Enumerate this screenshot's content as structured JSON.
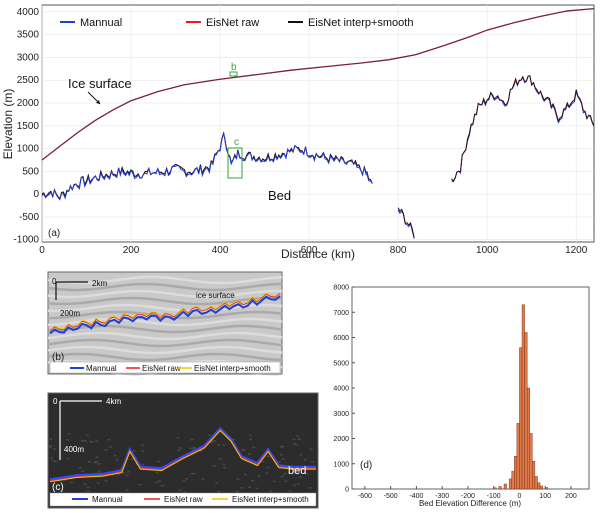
{
  "chart_data": [
    {
      "panel": "a",
      "type": "line",
      "xlabel": "Distance (km)",
      "ylabel": "Elevation (m)",
      "xlim": [
        0,
        1240
      ],
      "ylim": [
        -1050,
        4150
      ],
      "xticks": [
        "0",
        "200",
        "400",
        "600",
        "800",
        "1000",
        "1200"
      ],
      "yticks": [
        "-1000",
        "-500",
        "0",
        "500",
        "1000",
        "1500",
        "2000",
        "2500",
        "3000",
        "3500",
        "4000"
      ],
      "legend": [
        "Mannual",
        "EisNet raw",
        "EisNet interp+smooth"
      ],
      "legend_position": "top-left",
      "colors": {
        "manual": "#1f3fd6",
        "raw": "#e02020",
        "smooth": "#111111",
        "surface": "#7a1f3a",
        "box": "#2eaa3a"
      },
      "annotations": {
        "ice_surface": "Ice surface",
        "bed": "Bed",
        "b": "b",
        "c": "c",
        "panel": "(a)"
      },
      "surface_points": [
        [
          0,
          750
        ],
        [
          40,
          1050
        ],
        [
          80,
          1350
        ],
        [
          120,
          1620
        ],
        [
          160,
          1850
        ],
        [
          200,
          2050
        ],
        [
          260,
          2250
        ],
        [
          320,
          2400
        ],
        [
          400,
          2520
        ],
        [
          480,
          2620
        ],
        [
          560,
          2720
        ],
        [
          640,
          2800
        ],
        [
          720,
          2880
        ],
        [
          780,
          2950
        ],
        [
          840,
          3060
        ],
        [
          900,
          3250
        ],
        [
          960,
          3450
        ],
        [
          1000,
          3600
        ],
        [
          1060,
          3760
        ],
        [
          1120,
          3900
        ],
        [
          1180,
          4020
        ],
        [
          1240,
          4070
        ]
      ],
      "bed_points": [
        [
          0,
          0
        ],
        [
          20,
          60
        ],
        [
          40,
          -60
        ],
        [
          60,
          120
        ],
        [
          80,
          250
        ],
        [
          100,
          300
        ],
        [
          140,
          420
        ],
        [
          180,
          500
        ],
        [
          220,
          450
        ],
        [
          260,
          480
        ],
        [
          300,
          550
        ],
        [
          340,
          500
        ],
        [
          380,
          620
        ],
        [
          400,
          1050
        ],
        [
          410,
          1300
        ],
        [
          425,
          650
        ],
        [
          440,
          900
        ],
        [
          460,
          850
        ],
        [
          500,
          800
        ],
        [
          540,
          900
        ],
        [
          580,
          1000
        ],
        [
          620,
          850
        ],
        [
          660,
          750
        ],
        [
          700,
          650
        ],
        [
          730,
          450
        ],
        [
          745,
          100
        ],
        [
          760,
          null
        ],
        [
          790,
          null
        ],
        [
          800,
          -300
        ],
        [
          820,
          -600
        ],
        [
          840,
          -950
        ],
        [
          860,
          null
        ],
        [
          900,
          null
        ],
        [
          920,
          300
        ],
        [
          940,
          600
        ],
        [
          960,
          1400
        ],
        [
          980,
          1900
        ],
        [
          1000,
          2100
        ],
        [
          1020,
          2200
        ],
        [
          1040,
          2000
        ],
        [
          1060,
          2400
        ],
        [
          1080,
          2600
        ],
        [
          1100,
          2500
        ],
        [
          1120,
          2200
        ],
        [
          1140,
          2000
        ],
        [
          1160,
          1700
        ],
        [
          1180,
          1900
        ],
        [
          1200,
          2200
        ],
        [
          1220,
          1800
        ],
        [
          1240,
          1500
        ]
      ]
    },
    {
      "panel": "b",
      "type": "line",
      "legend": [
        "Mannual",
        "EisNet raw",
        "EisNet interp+smooth"
      ],
      "scale_labels": {
        "zero": "0",
        "x": "2km",
        "y": "200m"
      },
      "annotations": {
        "surface": "ice surface",
        "panel": "(b)"
      },
      "trace_points": [
        [
          0,
          0.38
        ],
        [
          0.1,
          0.46
        ],
        [
          0.2,
          0.5
        ],
        [
          0.3,
          0.55
        ],
        [
          0.4,
          0.62
        ],
        [
          0.5,
          0.58
        ],
        [
          0.6,
          0.66
        ],
        [
          0.7,
          0.7
        ],
        [
          0.8,
          0.74
        ],
        [
          0.9,
          0.82
        ],
        [
          1.0,
          0.9
        ]
      ]
    },
    {
      "panel": "c",
      "type": "line",
      "legend": [
        "Mannual",
        "EisNet raw",
        "EisNet interp+smooth"
      ],
      "scale_labels": {
        "zero": "0",
        "x": "4km",
        "y": "400m"
      },
      "annotations": {
        "bed": "bed",
        "panel": "(c)"
      },
      "trace_points": [
        [
          0,
          0.12
        ],
        [
          0.1,
          0.18
        ],
        [
          0.2,
          0.2
        ],
        [
          0.27,
          0.25
        ],
        [
          0.3,
          0.55
        ],
        [
          0.34,
          0.3
        ],
        [
          0.42,
          0.28
        ],
        [
          0.5,
          0.45
        ],
        [
          0.58,
          0.6
        ],
        [
          0.64,
          0.85
        ],
        [
          0.68,
          0.7
        ],
        [
          0.72,
          0.45
        ],
        [
          0.78,
          0.35
        ],
        [
          0.82,
          0.55
        ],
        [
          0.86,
          0.32
        ],
        [
          0.92,
          0.3
        ],
        [
          1.0,
          0.3
        ]
      ]
    },
    {
      "panel": "d",
      "type": "bar",
      "xlabel": "Bed Elevation Difference (m)",
      "xlim": [
        -650,
        270
      ],
      "ylim": [
        0,
        8000
      ],
      "xticks": [
        "-600",
        "-500",
        "-400",
        "-300",
        "-200",
        "-100",
        "0",
        "100",
        "200"
      ],
      "yticks": [
        "0",
        "1000",
        "2000",
        "3000",
        "4000",
        "5000",
        "6000",
        "7000",
        "8000"
      ],
      "annotations": {
        "panel": "(d)"
      },
      "bins": [
        [
          -100,
          50
        ],
        [
          -80,
          100
        ],
        [
          -60,
          200
        ],
        [
          -40,
          400
        ],
        [
          -30,
          700
        ],
        [
          -20,
          1300
        ],
        [
          -10,
          2600
        ],
        [
          0,
          5600
        ],
        [
          10,
          7300
        ],
        [
          20,
          6200
        ],
        [
          30,
          4000
        ],
        [
          40,
          2200
        ],
        [
          50,
          1100
        ],
        [
          60,
          500
        ],
        [
          70,
          250
        ],
        [
          80,
          120
        ],
        [
          100,
          60
        ]
      ]
    }
  ]
}
